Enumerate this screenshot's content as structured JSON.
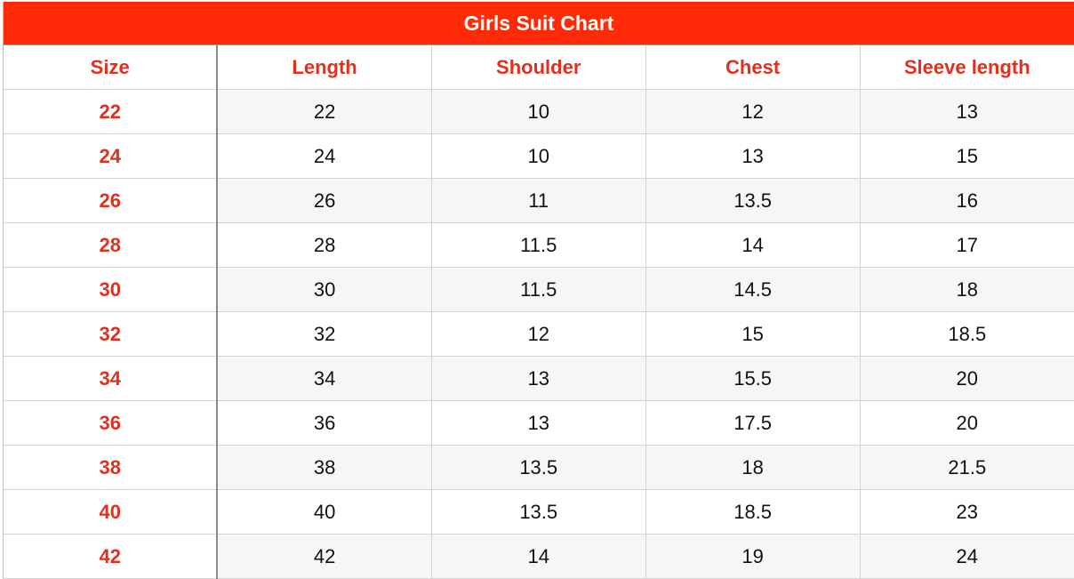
{
  "title": "Girls Suit Chart",
  "columns": [
    "Size",
    "Length",
    "Shoulder",
    "Chest",
    "Sleeve length"
  ],
  "rows": [
    [
      "22",
      "22",
      "10",
      "12",
      "13"
    ],
    [
      "24",
      "24",
      "10",
      "13",
      "15"
    ],
    [
      "26",
      "26",
      "11",
      "13.5",
      "16"
    ],
    [
      "28",
      "28",
      "11.5",
      "14",
      "17"
    ],
    [
      "30",
      "30",
      "11.5",
      "14.5",
      "18"
    ],
    [
      "32",
      "32",
      "12",
      "15",
      "18.5"
    ],
    [
      "34",
      "34",
      "13",
      "15.5",
      "20"
    ],
    [
      "36",
      "36",
      "13",
      "17.5",
      "20"
    ],
    [
      "38",
      "38",
      "13.5",
      "18",
      "21.5"
    ],
    [
      "40",
      "40",
      "13.5",
      "18.5",
      "23"
    ],
    [
      "42",
      "42",
      "14",
      "19",
      "24"
    ]
  ],
  "colors": {
    "title_bg": "#ff2a08",
    "accent_text": "#e2301d",
    "alt_row": "#f6f6f6"
  }
}
